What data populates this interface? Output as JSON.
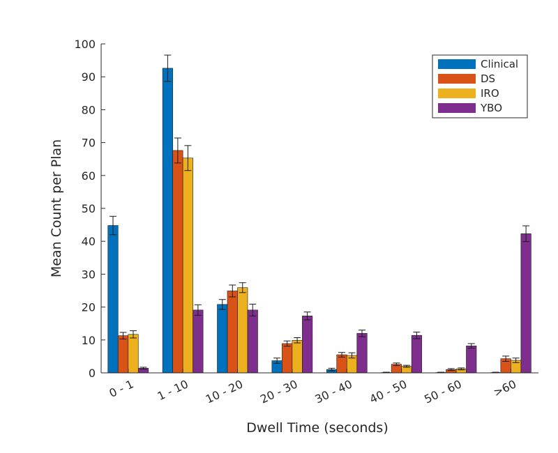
{
  "chart_data": {
    "type": "bar",
    "title": "",
    "xlabel": "Dwell Time (seconds)",
    "ylabel": "Mean Count per Plan",
    "ylim": [
      0,
      100
    ],
    "yticks": [
      "0",
      "10",
      "20",
      "30",
      "40",
      "50",
      "60",
      "70",
      "80",
      "90",
      "100"
    ],
    "categories": [
      "0 - 1",
      "1 - 10",
      "10 - 20",
      "20 - 30",
      "30 - 40",
      "40 - 50",
      "50 - 60",
      ">60"
    ],
    "series": [
      {
        "name": "Clinical",
        "color": "#0072BD",
        "values": [
          44.8,
          92.6,
          20.8,
          3.7,
          1.0,
          0.1,
          0.1,
          0.1
        ],
        "errors": [
          2.8,
          4.0,
          1.5,
          0.8,
          0.4,
          0.1,
          0.1,
          0.1
        ]
      },
      {
        "name": "DS",
        "color": "#D95319",
        "values": [
          11.3,
          67.6,
          24.9,
          8.9,
          5.5,
          2.6,
          1.0,
          4.3
        ],
        "errors": [
          1.0,
          3.8,
          1.8,
          0.8,
          0.7,
          0.4,
          0.3,
          0.8
        ]
      },
      {
        "name": "IRO",
        "color": "#EDB120",
        "values": [
          11.7,
          65.3,
          25.9,
          9.9,
          5.3,
          2.0,
          1.2,
          3.8
        ],
        "errors": [
          1.1,
          3.8,
          1.5,
          0.8,
          0.8,
          0.3,
          0.3,
          0.7
        ]
      },
      {
        "name": "YBO",
        "color": "#7E2F8E",
        "values": [
          1.4,
          19.1,
          19.1,
          17.3,
          12.0,
          11.4,
          8.2,
          42.3
        ],
        "errors": [
          0.3,
          1.6,
          1.8,
          1.2,
          1.0,
          1.0,
          0.7,
          2.4
        ]
      }
    ],
    "legend_position": "top-right",
    "grid": false
  }
}
